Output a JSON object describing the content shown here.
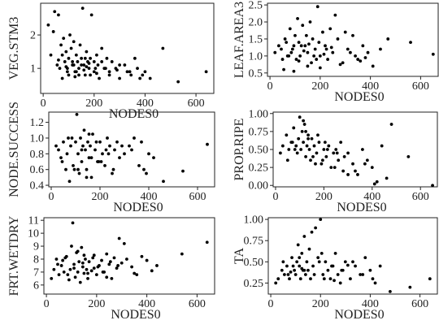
{
  "figure": {
    "background": "#ffffff",
    "point_color": "#000000",
    "frame_color": "#222222"
  },
  "chart_data": [
    {
      "type": "scatter",
      "xlabel": "NODES0",
      "ylabel": "VEG.STM3",
      "xlim": [
        -10,
        670
      ],
      "ylim": [
        0.25,
        2.95
      ],
      "xticks": [
        0,
        200,
        400,
        600
      ],
      "yticks": [
        1,
        2
      ],
      "x": [
        20,
        30,
        45,
        55,
        60,
        70,
        80,
        85,
        90,
        95,
        100,
        105,
        110,
        115,
        120,
        125,
        130,
        135,
        140,
        145,
        150,
        155,
        160,
        165,
        170,
        175,
        180,
        185,
        190,
        200,
        210,
        215,
        220,
        230,
        240,
        250,
        260,
        270,
        285,
        300,
        320,
        340,
        360,
        380,
        390,
        420,
        470,
        530,
        640,
        40,
        65,
        75,
        100,
        115,
        130,
        150,
        165,
        185,
        205,
        230,
        260,
        300,
        345,
        400,
        75,
        95,
        120,
        140,
        160,
        180,
        210,
        245,
        290,
        330,
        370,
        60,
        90,
        125,
        170,
        200
      ],
      "y": [
        2.3,
        1.4,
        2.7,
        1.1,
        2.6,
        1.7,
        1.9,
        1.2,
        1.5,
        1.0,
        1.3,
        2.0,
        1.6,
        1.1,
        1.8,
        0.9,
        1.4,
        1.2,
        1.0,
        1.7,
        1.3,
        2.8,
        1.1,
        0.8,
        1.5,
        1.2,
        1.0,
        1.3,
        2.6,
        0.9,
        1.4,
        1.1,
        0.7,
        1.6,
        1.0,
        1.3,
        0.8,
        1.2,
        1.0,
        0.7,
        1.1,
        0.9,
        1.3,
        0.7,
        0.8,
        0.7,
        1.6,
        0.6,
        0.9,
        2.1,
        1.0,
        1.4,
        0.8,
        1.2,
        0.9,
        1.1,
        1.3,
        0.8,
        1.0,
        1.2,
        0.9,
        1.1,
        0.8,
        0.9,
        0.7,
        0.9,
        1.1,
        0.8,
        0.95,
        1.15,
        0.85,
        1.0,
        0.95,
        0.9,
        1.0,
        1.25,
        1.05,
        0.75,
        1.05,
        1.2
      ]
    },
    {
      "type": "scatter",
      "xlabel": "NODES0",
      "ylabel": "LEAF.AREA3",
      "xlim": [
        -10,
        670
      ],
      "ylim": [
        0.4,
        2.55
      ],
      "xticks": [
        0,
        200,
        400,
        600
      ],
      "yticks": [
        0.5,
        1.0,
        1.5,
        2.0,
        2.5
      ],
      "x": [
        20,
        35,
        50,
        60,
        70,
        80,
        90,
        100,
        110,
        115,
        120,
        130,
        140,
        150,
        160,
        165,
        170,
        180,
        190,
        200,
        210,
        220,
        230,
        240,
        250,
        270,
        290,
        310,
        330,
        350,
        370,
        390,
        410,
        440,
        470,
        560,
        650,
        45,
        65,
        85,
        105,
        125,
        145,
        175,
        195,
        225,
        260,
        300,
        340,
        380,
        55,
        75,
        95,
        115,
        135,
        155,
        185,
        215,
        245,
        280,
        320,
        360,
        95,
        150,
        200
      ],
      "y": [
        1.1,
        1.3,
        0.9,
        1.5,
        1.0,
        1.8,
        1.2,
        1.6,
        2.1,
        1.4,
        1.0,
        1.9,
        1.3,
        1.1,
        2.0,
        0.8,
        1.5,
        1.2,
        2.45,
        1.0,
        1.7,
        1.3,
        0.9,
        1.8,
        1.1,
        1.5,
        0.8,
        1.2,
        1.6,
        0.9,
        1.3,
        1.1,
        0.7,
        1.2,
        1.5,
        1.4,
        1.05,
        1.2,
        1.4,
        1.1,
        0.9,
        1.3,
        1.6,
        1.0,
        1.4,
        1.2,
        2.2,
        1.7,
        1.0,
        0.95,
        0.6,
        1.0,
        1.3,
        0.85,
        1.15,
        1.35,
        0.9,
        1.05,
        1.25,
        0.75,
        1.1,
        0.85,
        0.55,
        0.7,
        0.65
      ]
    },
    {
      "type": "scatter",
      "xlabel": "NODES0",
      "ylabel": "NODE.SUCCESS",
      "xlim": [
        -10,
        670
      ],
      "ylim": [
        0.38,
        1.33
      ],
      "xticks": [
        0,
        200,
        400,
        600
      ],
      "yticks": [
        0.4,
        0.6,
        0.8,
        1.0,
        1.2
      ],
      "x": [
        20,
        30,
        40,
        50,
        60,
        70,
        80,
        90,
        100,
        105,
        110,
        115,
        120,
        125,
        130,
        135,
        140,
        145,
        150,
        155,
        160,
        165,
        170,
        180,
        190,
        200,
        210,
        220,
        230,
        240,
        250,
        260,
        270,
        280,
        300,
        320,
        340,
        360,
        380,
        390,
        400,
        420,
        460,
        540,
        640,
        45,
        65,
        85,
        95,
        125,
        145,
        165,
        185,
        205,
        225,
        255,
        290,
        330,
        370,
        75,
        110,
        155,
        195,
        235
      ],
      "y": [
        0.9,
        0.85,
        0.75,
        0.95,
        0.6,
        1.0,
        0.9,
        0.65,
        0.95,
        1.3,
        0.8,
        0.55,
        1.0,
        0.7,
        0.9,
        1.1,
        0.85,
        0.6,
        0.95,
        0.75,
        0.9,
        0.5,
        1.05,
        0.85,
        0.7,
        0.95,
        0.8,
        0.65,
        1.0,
        0.9,
        0.55,
        0.85,
        0.95,
        0.75,
        0.8,
        0.9,
        1.0,
        0.65,
        0.6,
        0.55,
        0.8,
        0.75,
        0.45,
        0.58,
        0.92,
        0.7,
        0.8,
        1.0,
        0.6,
        0.85,
        0.5,
        0.75,
        0.95,
        0.7,
        0.85,
        0.6,
        0.9,
        0.85,
        0.95,
        0.45,
        0.6,
        1.05,
        0.7,
        0.8
      ]
    },
    {
      "type": "scatter",
      "xlabel": "NODES0",
      "ylabel": "PROP.RIPE",
      "xlim": [
        -10,
        670
      ],
      "ylim": [
        -0.02,
        1.02
      ],
      "xticks": [
        0,
        200,
        400,
        600
      ],
      "yticks": [
        0.0,
        0.25,
        0.5,
        0.75,
        1.0
      ],
      "x": [
        20,
        30,
        45,
        55,
        65,
        75,
        85,
        95,
        100,
        105,
        110,
        115,
        120,
        125,
        130,
        135,
        140,
        145,
        150,
        160,
        170,
        180,
        190,
        200,
        210,
        220,
        230,
        240,
        250,
        260,
        270,
        280,
        300,
        320,
        340,
        360,
        380,
        400,
        420,
        440,
        460,
        480,
        550,
        650,
        50,
        70,
        90,
        115,
        135,
        155,
        175,
        195,
        215,
        245,
        285,
        330,
        370,
        410,
        80,
        125,
        165,
        205,
        255,
        300
      ],
      "y": [
        0.45,
        0.55,
        0.7,
        0.5,
        0.6,
        0.8,
        0.55,
        0.65,
        0.95,
        0.5,
        0.75,
        0.6,
        0.85,
        0.4,
        0.55,
        0.7,
        0.5,
        0.35,
        0.65,
        0.55,
        0.45,
        0.6,
        0.3,
        0.5,
        0.4,
        0.55,
        0.25,
        0.45,
        0.5,
        0.35,
        0.6,
        0.2,
        0.45,
        0.3,
        0.15,
        0.5,
        0.35,
        0.25,
        0.05,
        0.55,
        0.1,
        0.85,
        0.4,
        0.0,
        0.35,
        0.6,
        0.45,
        0.9,
        0.65,
        0.4,
        0.7,
        0.35,
        0.5,
        0.25,
        0.4,
        0.2,
        0.3,
        0.02,
        0.5,
        0.75,
        0.3,
        0.6,
        0.45,
        0.15
      ]
    },
    {
      "type": "scatter",
      "xlabel": "NODES0",
      "ylabel": "FRT.WETDRY",
      "xlim": [
        -10,
        670
      ],
      "ylim": [
        5.3,
        11.2
      ],
      "xticks": [
        0,
        200,
        400,
        600
      ],
      "yticks": [
        6,
        7,
        8,
        9,
        10,
        11
      ],
      "x": [
        20,
        30,
        40,
        50,
        60,
        70,
        80,
        90,
        100,
        105,
        110,
        115,
        120,
        125,
        130,
        135,
        140,
        145,
        150,
        155,
        160,
        165,
        170,
        180,
        190,
        200,
        210,
        220,
        230,
        240,
        250,
        260,
        270,
        280,
        290,
        300,
        320,
        340,
        360,
        380,
        400,
        420,
        440,
        540,
        640,
        45,
        65,
        85,
        95,
        125,
        145,
        165,
        185,
        205,
        225,
        255,
        285,
        310,
        350,
        75,
        110,
        150,
        190,
        240
      ],
      "y": [
        6.5,
        7.2,
        8.0,
        6.8,
        7.5,
        7.0,
        8.2,
        6.4,
        9.0,
        10.8,
        7.3,
        6.6,
        8.5,
        7.0,
        7.8,
        6.2,
        8.9,
        7.4,
        6.9,
        8.0,
        7.2,
        6.5,
        7.8,
        7.1,
        8.3,
        6.8,
        7.5,
        7.9,
        7.0,
        8.4,
        7.6,
        6.5,
        8.1,
        7.3,
        9.6,
        7.7,
        8.0,
        7.4,
        6.8,
        8.2,
        7.9,
        7.1,
        7.5,
        8.4,
        9.3,
        7.6,
        7.9,
        6.8,
        7.2,
        8.6,
        7.7,
        6.9,
        8.1,
        7.4,
        7.0,
        7.8,
        7.5,
        9.2,
        6.9,
        8.1,
        7.6,
        8.3,
        7.3,
        6.6
      ]
    },
    {
      "type": "scatter",
      "xlabel": "NODES0",
      "ylabel": "TA",
      "xlim": [
        -10,
        670
      ],
      "ylim": [
        0.12,
        1.02
      ],
      "xticks": [
        0,
        200,
        400,
        600
      ],
      "yticks": [
        0.25,
        0.5,
        0.75,
        1.0
      ],
      "x": [
        20,
        30,
        45,
        55,
        65,
        75,
        85,
        95,
        100,
        105,
        110,
        115,
        120,
        125,
        130,
        135,
        140,
        145,
        150,
        160,
        170,
        180,
        190,
        200,
        210,
        220,
        230,
        240,
        250,
        260,
        270,
        280,
        290,
        300,
        320,
        340,
        360,
        380,
        400,
        420,
        440,
        480,
        560,
        640,
        50,
        70,
        90,
        115,
        135,
        155,
        175,
        195,
        215,
        245,
        285,
        330,
        370,
        410,
        80,
        125,
        165,
        205,
        255,
        310
      ],
      "y": [
        0.25,
        0.3,
        0.4,
        0.35,
        0.45,
        0.3,
        0.55,
        0.4,
        0.35,
        0.5,
        0.7,
        0.45,
        0.3,
        0.6,
        0.4,
        0.8,
        0.35,
        0.5,
        0.4,
        0.3,
        0.45,
        0.9,
        0.55,
        1.0,
        0.35,
        0.5,
        0.4,
        0.3,
        0.45,
        0.6,
        0.35,
        0.25,
        0.4,
        0.5,
        0.3,
        0.45,
        0.35,
        0.55,
        0.4,
        0.25,
        0.45,
        0.15,
        0.2,
        0.3,
        0.5,
        0.35,
        0.45,
        0.55,
        0.4,
        0.65,
        0.35,
        0.5,
        0.3,
        0.45,
        0.4,
        0.5,
        0.35,
        0.3,
        0.38,
        0.42,
        0.85,
        0.6,
        0.28,
        0.46
      ]
    }
  ]
}
